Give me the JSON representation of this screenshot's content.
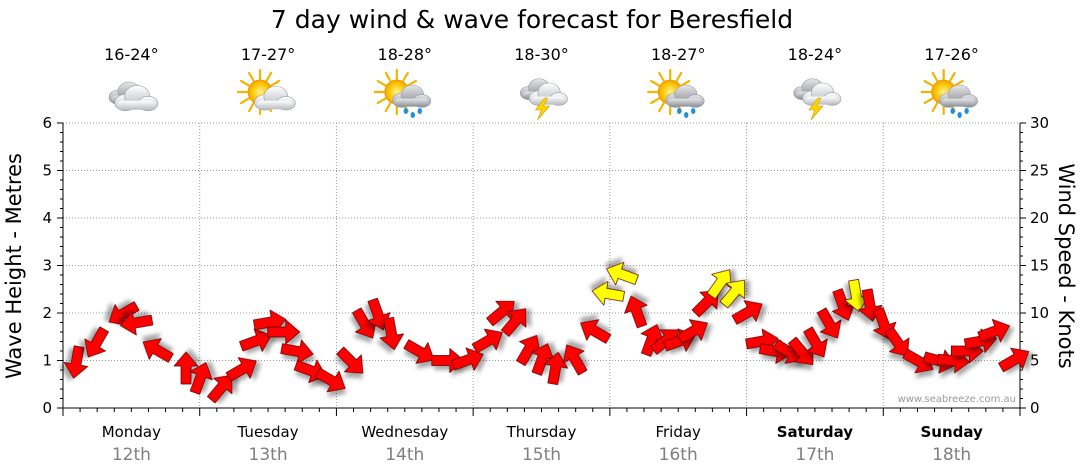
{
  "chart_data": {
    "type": "line",
    "title": "7 day wind & wave forecast for Beresfield",
    "ylabel_left": "Wave Height - Metres",
    "ylabel_right": "Wind Speed - Knots",
    "ylim_left": [
      0,
      6
    ],
    "ylim_right": [
      0,
      30
    ],
    "yticks_left": [
      "0",
      "1",
      "2",
      "3",
      "4",
      "5",
      "6"
    ],
    "yticks_right": [
      "0",
      "5",
      "10",
      "15",
      "20",
      "25",
      "30"
    ],
    "grid": true,
    "credit": "www.seabreeze.com.au",
    "days": [
      {
        "name": "Monday",
        "date": "12th",
        "temp": "16-24°",
        "icon": "cloudy-icon",
        "bold": false
      },
      {
        "name": "Tuesday",
        "date": "13th",
        "temp": "17-27°",
        "icon": "partly-cloudy-icon",
        "bold": false
      },
      {
        "name": "Wednesday",
        "date": "14th",
        "temp": "18-28°",
        "icon": "sun-shower-icon",
        "bold": false
      },
      {
        "name": "Thursday",
        "date": "15th",
        "temp": "18-30°",
        "icon": "storm-icon",
        "bold": false
      },
      {
        "name": "Friday",
        "date": "16th",
        "temp": "18-27°",
        "icon": "sun-shower-icon",
        "bold": false
      },
      {
        "name": "Saturday",
        "date": "17th",
        "temp": "18-24°",
        "icon": "storm-icon",
        "bold": true
      },
      {
        "name": "Sunday",
        "date": "18th",
        "temp": "17-26°",
        "icon": "sun-shower-icon",
        "bold": true
      }
    ],
    "wind_series": {
      "name": "Wind speed (knots) with direction arrows",
      "x_day_offset": [
        0.1,
        0.25,
        0.45,
        0.55,
        0.7,
        0.9,
        1.0,
        1.15,
        1.3,
        1.4,
        1.5,
        1.6,
        1.7,
        1.8,
        1.95,
        2.1,
        2.2,
        2.3,
        2.4,
        2.6,
        2.8,
        2.95,
        3.1,
        3.2,
        3.3,
        3.4,
        3.5,
        3.6,
        3.75,
        3.9,
        4.0,
        4.1,
        4.2,
        4.3,
        4.4,
        4.5,
        4.6,
        4.7,
        4.8,
        4.9,
        5.0,
        5.1,
        5.2,
        5.3,
        5.4,
        5.5,
        5.6,
        5.7,
        5.8,
        5.9,
        6.0,
        6.1,
        6.25,
        6.4,
        6.5,
        6.6,
        6.7,
        6.8,
        6.95
      ],
      "speed_knots": [
        5,
        7,
        10,
        9,
        6,
        4,
        3,
        2,
        4,
        7,
        9,
        8,
        6,
        4,
        3,
        5,
        9,
        10,
        8,
        6,
        5,
        5,
        7,
        10,
        9,
        6,
        5,
        4,
        5,
        8,
        12,
        14,
        10,
        7,
        7,
        7,
        8,
        11,
        13,
        12,
        10,
        7,
        6,
        6,
        6,
        7,
        9,
        11,
        12,
        11,
        9,
        7,
        5,
        5,
        5,
        6,
        7,
        8,
        5
      ],
      "direction_deg": [
        10,
        30,
        60,
        80,
        120,
        180,
        200,
        220,
        240,
        250,
        260,
        270,
        280,
        290,
        300,
        315,
        330,
        340,
        350,
        300,
        270,
        250,
        240,
        230,
        220,
        210,
        200,
        190,
        150,
        120,
        100,
        110,
        160,
        200,
        230,
        250,
        240,
        225,
        215,
        220,
        240,
        260,
        280,
        300,
        320,
        330,
        330,
        340,
        350,
        350,
        340,
        325,
        300,
        285,
        275,
        270,
        260,
        250,
        240
      ]
    }
  }
}
